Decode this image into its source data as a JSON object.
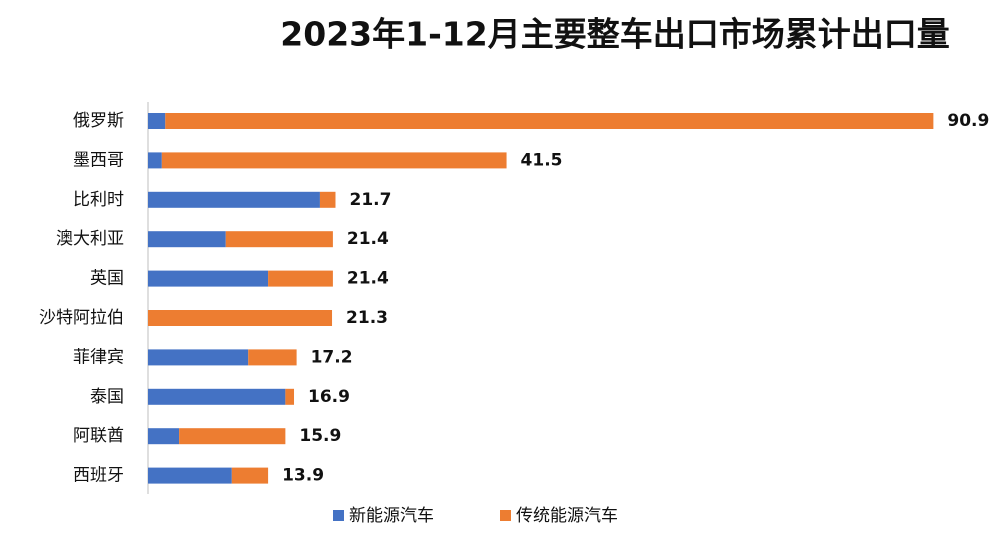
{
  "chart_data": {
    "type": "stacked-bar-horizontal",
    "title": "2023年1-12月主要整车出口市场累计出口量",
    "categories": [
      "俄罗斯",
      "墨西哥",
      "比利时",
      "澳大利亚",
      "英国",
      "沙特阿拉伯",
      "菲律宾",
      "泰国",
      "阿联酋",
      "西班牙"
    ],
    "series": [
      {
        "name": "新能源汽车",
        "color": "#4472c4",
        "values": [
          2.0,
          1.6,
          19.9,
          9.0,
          13.9,
          0,
          11.6,
          15.9,
          3.6,
          9.7
        ]
      },
      {
        "name": "传统能源汽车",
        "color": "#ed7d31",
        "values": [
          88.9,
          39.9,
          1.8,
          12.4,
          7.5,
          21.3,
          5.6,
          1.0,
          12.3,
          4.2
        ]
      }
    ],
    "totals": [
      90.9,
      41.5,
      21.7,
      21.4,
      21.4,
      21.3,
      17.2,
      16.9,
      15.9,
      13.9
    ],
    "xlim": [
      0,
      100
    ],
    "legend": "bottom"
  }
}
